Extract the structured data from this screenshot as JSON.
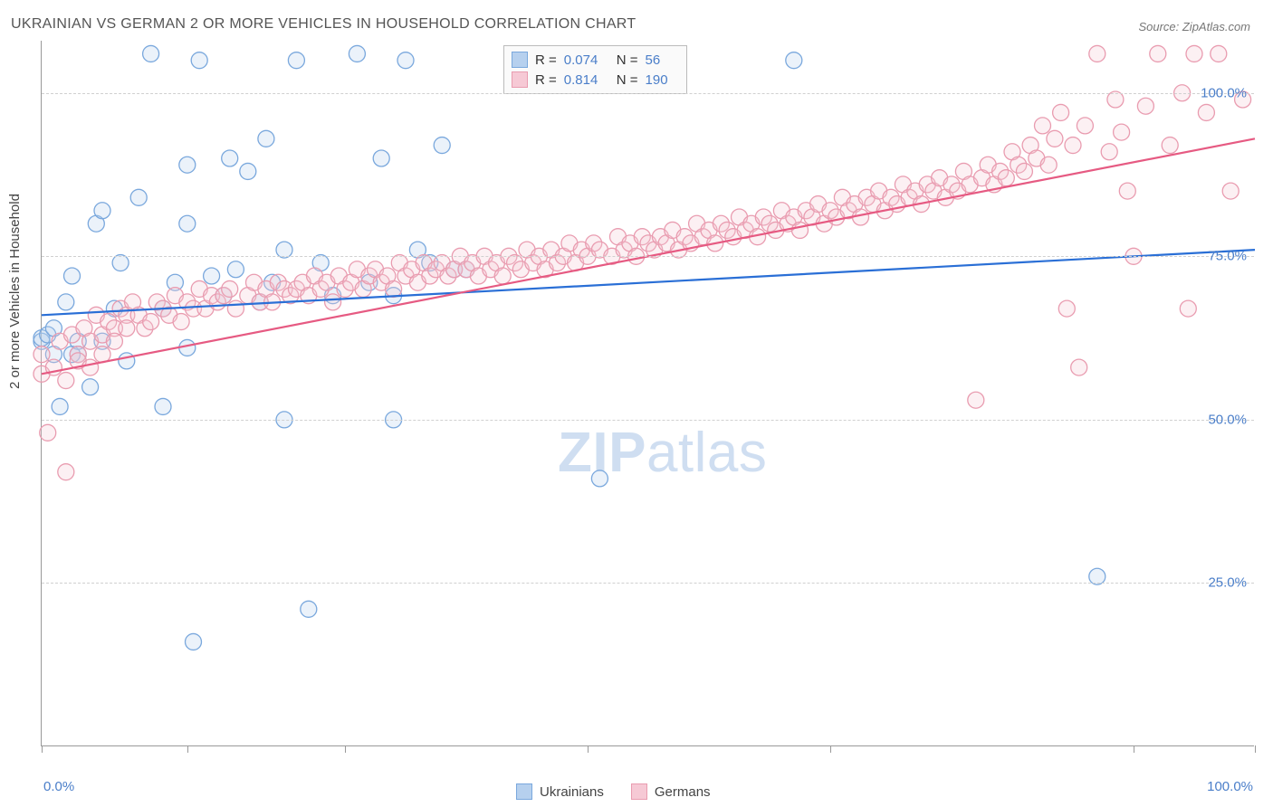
{
  "title": "UKRAINIAN VS GERMAN 2 OR MORE VEHICLES IN HOUSEHOLD CORRELATION CHART",
  "source": "Source: ZipAtlas.com",
  "ylabel": "2 or more Vehicles in Household",
  "watermark_bold": "ZIP",
  "watermark_rest": "atlas",
  "chart": {
    "type": "scatter",
    "plot_bg": "#ffffff",
    "grid_color": "#d5d5d5",
    "xlim": [
      0,
      100
    ],
    "ylim": [
      0,
      108
    ],
    "x_ticks": [
      0,
      12,
      25,
      45,
      65,
      90,
      100
    ],
    "x_tick_labels_shown": {
      "0": "0.0%",
      "100": "100.0%"
    },
    "y_grid": [
      25,
      50,
      75,
      100
    ],
    "y_tick_labels": {
      "25": "25.0%",
      "50": "50.0%",
      "75": "75.0%",
      "100": "100.0%"
    },
    "marker_radius": 9,
    "marker_stroke_width": 1.3,
    "marker_fill_opacity": 0.28,
    "line_width": 2.2,
    "series": [
      {
        "key": "ukrainians",
        "label": "Ukrainians",
        "R": "0.074",
        "N": "56",
        "color_stroke": "#7aa8dd",
        "color_fill": "#b6d0ee",
        "line_color": "#2a6fd6",
        "regression": {
          "x1": 0,
          "y1": 66,
          "x2": 100,
          "y2": 76
        },
        "points": [
          [
            0,
            62
          ],
          [
            0,
            62.5
          ],
          [
            0.5,
            63
          ],
          [
            1,
            60
          ],
          [
            1,
            64
          ],
          [
            1.5,
            52
          ],
          [
            2,
            68
          ],
          [
            2.5,
            60
          ],
          [
            2.5,
            72
          ],
          [
            3,
            62
          ],
          [
            3,
            60
          ],
          [
            4,
            55
          ],
          [
            4.5,
            80
          ],
          [
            5,
            62
          ],
          [
            5,
            82
          ],
          [
            6,
            67
          ],
          [
            6.5,
            74
          ],
          [
            7,
            59
          ],
          [
            8,
            84
          ],
          [
            9,
            106
          ],
          [
            10,
            52
          ],
          [
            10,
            67
          ],
          [
            11,
            71
          ],
          [
            12,
            89
          ],
          [
            12,
            80
          ],
          [
            12,
            61
          ],
          [
            12.5,
            16
          ],
          [
            13,
            105
          ],
          [
            14,
            72
          ],
          [
            15,
            69
          ],
          [
            15.5,
            90
          ],
          [
            16,
            73
          ],
          [
            17,
            88
          ],
          [
            18,
            68
          ],
          [
            18.5,
            93
          ],
          [
            19,
            71
          ],
          [
            20,
            50
          ],
          [
            20,
            76
          ],
          [
            21,
            105
          ],
          [
            22,
            21
          ],
          [
            23,
            74
          ],
          [
            24,
            69
          ],
          [
            26,
            106
          ],
          [
            27,
            71
          ],
          [
            28,
            90
          ],
          [
            29,
            69
          ],
          [
            29,
            50
          ],
          [
            30,
            105
          ],
          [
            31,
            76
          ],
          [
            32,
            74
          ],
          [
            33,
            92
          ],
          [
            34,
            73
          ],
          [
            35,
            73
          ],
          [
            46,
            41
          ],
          [
            62,
            105
          ],
          [
            87,
            26
          ]
        ]
      },
      {
        "key": "germans",
        "label": "Germans",
        "R": "0.814",
        "N": "190",
        "color_stroke": "#e99cb0",
        "color_fill": "#f6c9d5",
        "line_color": "#e65a82",
        "regression": {
          "x1": 0,
          "y1": 57,
          "x2": 100,
          "y2": 93
        },
        "points": [
          [
            0,
            57
          ],
          [
            0,
            60
          ],
          [
            0.5,
            48
          ],
          [
            1,
            58
          ],
          [
            1.5,
            62
          ],
          [
            2,
            56
          ],
          [
            2,
            42
          ],
          [
            2.5,
            63
          ],
          [
            3,
            60
          ],
          [
            3,
            59
          ],
          [
            3.5,
            64
          ],
          [
            4,
            62
          ],
          [
            4,
            58
          ],
          [
            4.5,
            66
          ],
          [
            5,
            63
          ],
          [
            5,
            60
          ],
          [
            5.5,
            65
          ],
          [
            6,
            64
          ],
          [
            6,
            62
          ],
          [
            6.5,
            67
          ],
          [
            7,
            66
          ],
          [
            7,
            64
          ],
          [
            7.5,
            68
          ],
          [
            8,
            66
          ],
          [
            8.5,
            64
          ],
          [
            9,
            65
          ],
          [
            9.5,
            68
          ],
          [
            10,
            67
          ],
          [
            10.5,
            66
          ],
          [
            11,
            69
          ],
          [
            11.5,
            65
          ],
          [
            12,
            68
          ],
          [
            12.5,
            67
          ],
          [
            13,
            70
          ],
          [
            13.5,
            67
          ],
          [
            14,
            69
          ],
          [
            14.5,
            68
          ],
          [
            15,
            69
          ],
          [
            15.5,
            70
          ],
          [
            16,
            67
          ],
          [
            17,
            69
          ],
          [
            17.5,
            71
          ],
          [
            18,
            68
          ],
          [
            18.5,
            70
          ],
          [
            19,
            68
          ],
          [
            19.5,
            71
          ],
          [
            20,
            70
          ],
          [
            20.5,
            69
          ],
          [
            21,
            70
          ],
          [
            21.5,
            71
          ],
          [
            22,
            69
          ],
          [
            22.5,
            72
          ],
          [
            23,
            70
          ],
          [
            23.5,
            71
          ],
          [
            24,
            68
          ],
          [
            24.5,
            72
          ],
          [
            25,
            70
          ],
          [
            25.5,
            71
          ],
          [
            26,
            73
          ],
          [
            26.5,
            70
          ],
          [
            27,
            72
          ],
          [
            27.5,
            73
          ],
          [
            28,
            71
          ],
          [
            28.5,
            72
          ],
          [
            29,
            70
          ],
          [
            29.5,
            74
          ],
          [
            30,
            72
          ],
          [
            30.5,
            73
          ],
          [
            31,
            71
          ],
          [
            31.5,
            74
          ],
          [
            32,
            72
          ],
          [
            32.5,
            73
          ],
          [
            33,
            74
          ],
          [
            33.5,
            72
          ],
          [
            34,
            73
          ],
          [
            34.5,
            75
          ],
          [
            35,
            73
          ],
          [
            35.5,
            74
          ],
          [
            36,
            72
          ],
          [
            36.5,
            75
          ],
          [
            37,
            73
          ],
          [
            37.5,
            74
          ],
          [
            38,
            72
          ],
          [
            38.5,
            75
          ],
          [
            39,
            74
          ],
          [
            39.5,
            73
          ],
          [
            40,
            76
          ],
          [
            40.5,
            74
          ],
          [
            41,
            75
          ],
          [
            41.5,
            73
          ],
          [
            42,
            76
          ],
          [
            42.5,
            74
          ],
          [
            43,
            75
          ],
          [
            43.5,
            77
          ],
          [
            44,
            74
          ],
          [
            44.5,
            76
          ],
          [
            45,
            75
          ],
          [
            45.5,
            77
          ],
          [
            46,
            76
          ],
          [
            47,
            75
          ],
          [
            47.5,
            78
          ],
          [
            48,
            76
          ],
          [
            48.5,
            77
          ],
          [
            49,
            75
          ],
          [
            49.5,
            78
          ],
          [
            50,
            77
          ],
          [
            50.5,
            76
          ],
          [
            51,
            78
          ],
          [
            51.5,
            77
          ],
          [
            52,
            79
          ],
          [
            52.5,
            76
          ],
          [
            53,
            78
          ],
          [
            53.5,
            77
          ],
          [
            54,
            80
          ],
          [
            54.5,
            78
          ],
          [
            55,
            79
          ],
          [
            55.5,
            77
          ],
          [
            56,
            80
          ],
          [
            56.5,
            79
          ],
          [
            57,
            78
          ],
          [
            57.5,
            81
          ],
          [
            58,
            79
          ],
          [
            58.5,
            80
          ],
          [
            59,
            78
          ],
          [
            59.5,
            81
          ],
          [
            60,
            80
          ],
          [
            60.5,
            79
          ],
          [
            61,
            82
          ],
          [
            61.5,
            80
          ],
          [
            62,
            81
          ],
          [
            62.5,
            79
          ],
          [
            63,
            82
          ],
          [
            63.5,
            81
          ],
          [
            64,
            83
          ],
          [
            64.5,
            80
          ],
          [
            65,
            82
          ],
          [
            65.5,
            81
          ],
          [
            66,
            84
          ],
          [
            66.5,
            82
          ],
          [
            67,
            83
          ],
          [
            67.5,
            81
          ],
          [
            68,
            84
          ],
          [
            68.5,
            83
          ],
          [
            69,
            85
          ],
          [
            69.5,
            82
          ],
          [
            70,
            84
          ],
          [
            70.5,
            83
          ],
          [
            71,
            86
          ],
          [
            71.5,
            84
          ],
          [
            72,
            85
          ],
          [
            72.5,
            83
          ],
          [
            73,
            86
          ],
          [
            73.5,
            85
          ],
          [
            74,
            87
          ],
          [
            74.5,
            84
          ],
          [
            75,
            86
          ],
          [
            75.5,
            85
          ],
          [
            76,
            88
          ],
          [
            76.5,
            86
          ],
          [
            77,
            53
          ],
          [
            77.5,
            87
          ],
          [
            78,
            89
          ],
          [
            78.5,
            86
          ],
          [
            79,
            88
          ],
          [
            79.5,
            87
          ],
          [
            80,
            91
          ],
          [
            80.5,
            89
          ],
          [
            81,
            88
          ],
          [
            81.5,
            92
          ],
          [
            82,
            90
          ],
          [
            82.5,
            95
          ],
          [
            83,
            89
          ],
          [
            83.5,
            93
          ],
          [
            84,
            97
          ],
          [
            84.5,
            67
          ],
          [
            85,
            92
          ],
          [
            85.5,
            58
          ],
          [
            86,
            95
          ],
          [
            87,
            106
          ],
          [
            88,
            91
          ],
          [
            88.5,
            99
          ],
          [
            89,
            94
          ],
          [
            89.5,
            85
          ],
          [
            90,
            75
          ],
          [
            91,
            98
          ],
          [
            92,
            106
          ],
          [
            93,
            92
          ],
          [
            94,
            100
          ],
          [
            94.5,
            67
          ],
          [
            95,
            106
          ],
          [
            96,
            97
          ],
          [
            97,
            106
          ],
          [
            98,
            85
          ],
          [
            99,
            99
          ]
        ]
      }
    ],
    "bottom_legend": [
      {
        "swatch_fill": "#b6d0ee",
        "swatch_stroke": "#7aa8dd",
        "label": "Ukrainians"
      },
      {
        "swatch_fill": "#f6c9d5",
        "swatch_stroke": "#e99cb0",
        "label": "Germans"
      }
    ]
  }
}
